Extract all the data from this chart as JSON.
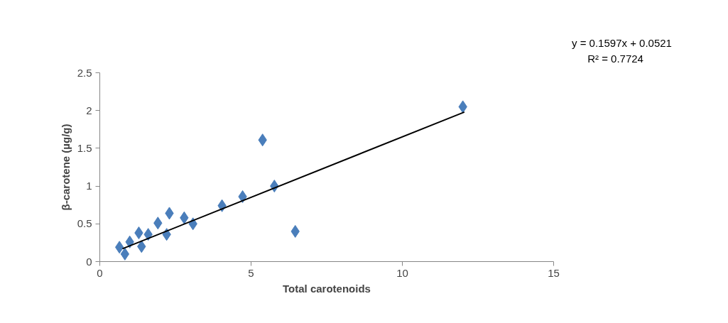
{
  "chart_data": {
    "type": "scatter",
    "xlabel": "Total carotenoids",
    "ylabel": "β-carotene (µg/g)",
    "xlim": [
      0,
      15
    ],
    "xticks": [
      0,
      5,
      10,
      15
    ],
    "ylim": [
      0,
      2.5
    ],
    "yticks": [
      0,
      0.5,
      1,
      1.5,
      2,
      2.5
    ],
    "grid": false,
    "marker": "diamond",
    "annotations": [
      "y = 0.1597x + 0.0521",
      "R² = 0.7724"
    ],
    "series": [
      {
        "color": "#4a7ebb",
        "x": [
          12.0,
          5.38,
          5.77,
          6.46,
          4.72,
          4.04,
          3.08,
          2.79,
          2.3,
          2.21,
          1.92,
          1.6,
          1.29,
          1.38,
          0.99,
          0.65,
          0.83
        ],
        "values": [
          2.05,
          1.61,
          1.0,
          0.4,
          0.86,
          0.74,
          0.5,
          0.58,
          0.64,
          0.36,
          0.51,
          0.36,
          0.38,
          0.2,
          0.26,
          0.19,
          0.1
        ]
      },
      {
        "type": "line",
        "marker": "none",
        "color": "#000000",
        "x": [
          0.75,
          12.05
        ],
        "values": [
          0.17,
          1.98
        ]
      }
    ]
  }
}
